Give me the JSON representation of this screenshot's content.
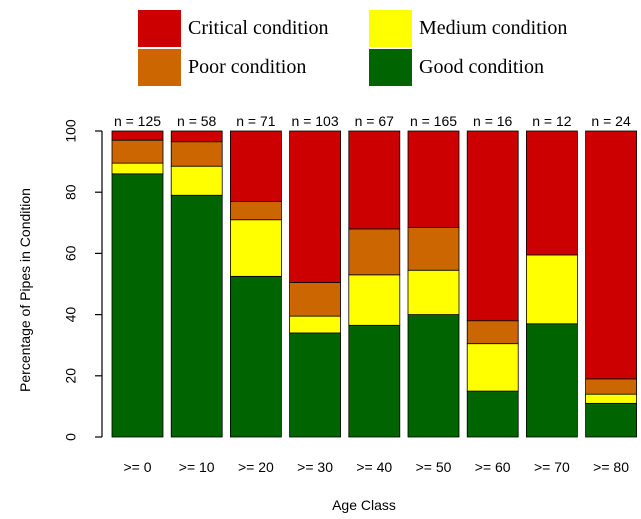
{
  "chart_data": {
    "type": "bar",
    "stacked": true,
    "title": "",
    "xlabel": "Age Class",
    "ylabel": "Percentage of Pipes in Condition",
    "ylim": [
      0,
      100
    ],
    "yticks": [
      0,
      20,
      40,
      60,
      80,
      100
    ],
    "grid": false,
    "legend_position": "top",
    "categories": [
      ">= 0",
      ">= 10",
      ">= 20",
      ">= 30",
      ">= 40",
      ">= 50",
      ">= 60",
      ">= 70",
      ">= 80"
    ],
    "counts": [
      "n = 125",
      "n = 58",
      "n = 71",
      "n = 103",
      "n = 67",
      "n = 165",
      "n = 16",
      "n = 12",
      "n = 24"
    ],
    "series": [
      {
        "name": "Good condition",
        "color": "#006400",
        "values": [
          86,
          79,
          52.5,
          34,
          36.5,
          40,
          15,
          37,
          11
        ]
      },
      {
        "name": "Medium condition",
        "color": "#ffff00",
        "values": [
          3.5,
          9.5,
          18.5,
          5.5,
          16.5,
          14.5,
          15.5,
          22.5,
          3
        ]
      },
      {
        "name": "Poor condition",
        "color": "#cc6600",
        "values": [
          7.5,
          8,
          6,
          11,
          15,
          14,
          7.5,
          0,
          5
        ]
      },
      {
        "name": "Critical condition",
        "color": "#cc0000",
        "values": [
          3,
          3.5,
          23,
          49.5,
          32,
          31.5,
          62,
          40.5,
          81
        ]
      }
    ],
    "legend": [
      {
        "name": "Critical condition",
        "color": "#cc0000"
      },
      {
        "name": "Medium condition",
        "color": "#ffff00"
      },
      {
        "name": "Poor condition",
        "color": "#cc6600"
      },
      {
        "name": "Good condition",
        "color": "#006400"
      }
    ]
  }
}
